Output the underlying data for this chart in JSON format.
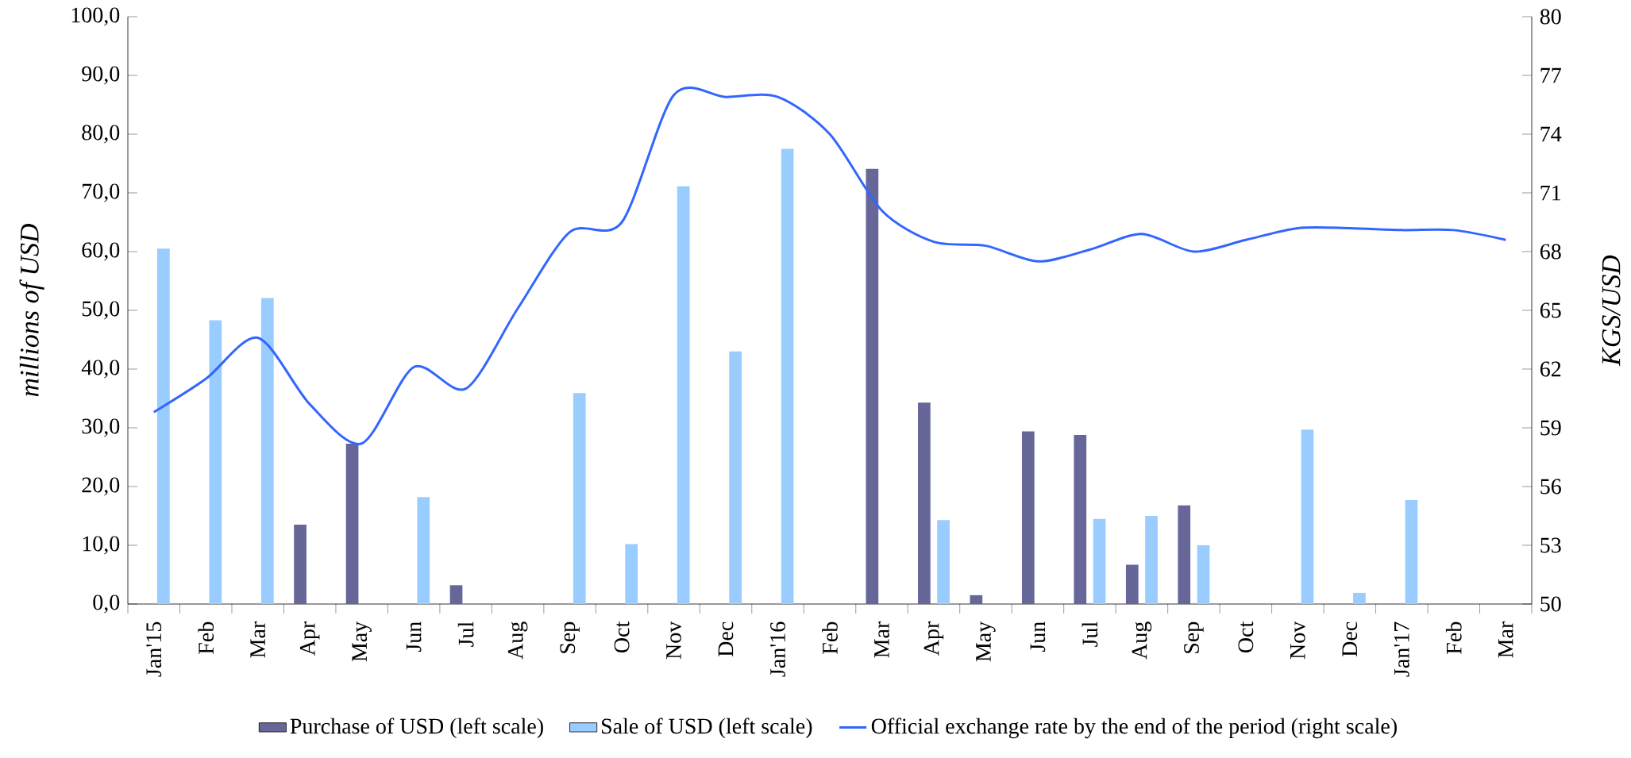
{
  "chart_data": {
    "type": "bar",
    "ylabel": "millions of USD",
    "y2label": "KGS/USD",
    "categories": [
      "Jan'15",
      "Feb",
      "Mar",
      "Apr",
      "May",
      "Jun",
      "Jul",
      "Aug",
      "Sep",
      "Oct",
      "Nov",
      "Dec",
      "Jan'16",
      "Feb",
      "Mar",
      "Apr",
      "May",
      "Jun",
      "Jul",
      "Aug",
      "Sep",
      "Oct",
      "Nov",
      "Dec",
      "Jan'17",
      "Feb",
      "Mar"
    ],
    "series": [
      {
        "name": "Purchase of USD (left scale)",
        "type": "bar",
        "color": "#666699",
        "values": [
          null,
          null,
          null,
          13.5,
          27.3,
          null,
          3.2,
          null,
          null,
          null,
          null,
          null,
          null,
          null,
          74.1,
          34.3,
          1.5,
          29.4,
          28.8,
          6.7,
          16.8,
          null,
          null,
          null,
          null,
          null,
          null
        ]
      },
      {
        "name": "Sale of USD (left scale)",
        "type": "bar",
        "color": "#99ccff",
        "values": [
          60.5,
          48.3,
          52.1,
          null,
          null,
          18.2,
          null,
          null,
          35.9,
          10.2,
          71.1,
          43.0,
          77.5,
          null,
          null,
          14.3,
          null,
          null,
          14.5,
          15.0,
          10.0,
          null,
          29.7,
          1.9,
          17.7,
          null,
          null
        ]
      },
      {
        "name": "Official exchange rate by the end of the period (right scale)",
        "type": "line",
        "axis": "y2",
        "color": "#3366ff",
        "values": [
          59.8,
          61.5,
          63.6,
          60.2,
          58.2,
          62.1,
          61.0,
          65.1,
          69.0,
          69.5,
          76.0,
          75.9,
          75.9,
          74.0,
          70.1,
          68.5,
          68.3,
          67.5,
          68.1,
          68.9,
          68.0,
          68.6,
          69.2,
          69.2,
          69.1,
          69.1,
          68.6
        ]
      }
    ],
    "ylim": [
      0,
      100
    ],
    "yticks": [
      {
        "value": 0,
        "label": "0,0"
      },
      {
        "value": 10,
        "label": "10,0"
      },
      {
        "value": 20,
        "label": "20,0"
      },
      {
        "value": 30,
        "label": "30,0"
      },
      {
        "value": 40,
        "label": "40,0"
      },
      {
        "value": 50,
        "label": "50,0"
      },
      {
        "value": 60,
        "label": "60,0"
      },
      {
        "value": 70,
        "label": "70,0"
      },
      {
        "value": 80,
        "label": "80,0"
      },
      {
        "value": 90,
        "label": "90,0"
      },
      {
        "value": 100,
        "label": "100,0"
      }
    ],
    "y2lim": [
      50,
      80
    ],
    "y2ticks": [
      50,
      53,
      56,
      59,
      62,
      65,
      68,
      71,
      74,
      77,
      80
    ],
    "legend": "bottom"
  }
}
